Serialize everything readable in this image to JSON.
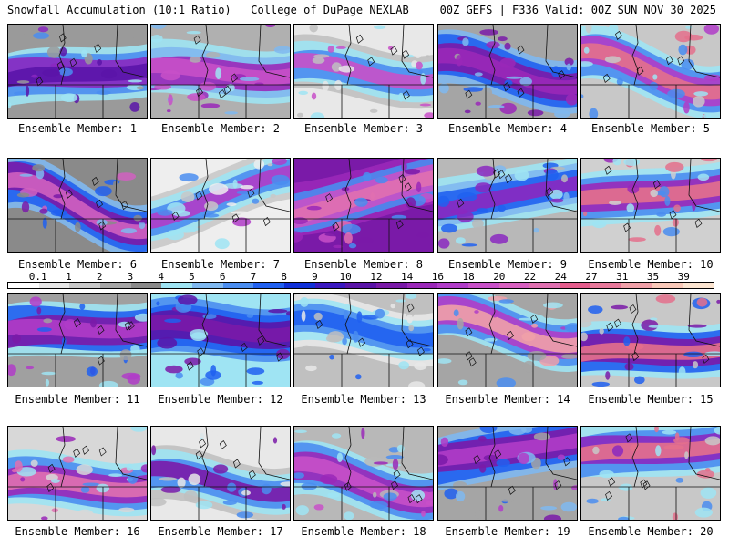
{
  "header": {
    "title": "Snowfall Accumulation (10:1 Ratio) | College of DuPage NEXLAB",
    "run_info": "00Z GEFS | F336 Valid: 00Z SUN NOV 30 2025"
  },
  "members": [
    {
      "label": "Ensemble Member: 1"
    },
    {
      "label": "Ensemble Member: 2"
    },
    {
      "label": "Ensemble Member: 3"
    },
    {
      "label": "Ensemble Member: 4"
    },
    {
      "label": "Ensemble Member: 5"
    },
    {
      "label": "Ensemble Member: 6"
    },
    {
      "label": "Ensemble Member: 7"
    },
    {
      "label": "Ensemble Member: 8"
    },
    {
      "label": "Ensemble Member: 9"
    },
    {
      "label": "Ensemble Member: 10"
    },
    {
      "label": "Ensemble Member: 11"
    },
    {
      "label": "Ensemble Member: 12"
    },
    {
      "label": "Ensemble Member: 13"
    },
    {
      "label": "Ensemble Member: 14"
    },
    {
      "label": "Ensemble Member: 15"
    },
    {
      "label": "Ensemble Member: 16"
    },
    {
      "label": "Ensemble Member: 17"
    },
    {
      "label": "Ensemble Member: 18"
    },
    {
      "label": "Ensemble Member: 19"
    },
    {
      "label": "Ensemble Member: 20"
    }
  ],
  "colorbar": {
    "labels": [
      "0.1",
      "1",
      "2",
      "3",
      "4",
      "5",
      "6",
      "7",
      "8",
      "9",
      "10",
      "12",
      "14",
      "16",
      "18",
      "20",
      "22",
      "24",
      "27",
      "31",
      "35",
      "39"
    ],
    "colors": [
      "#ffffff",
      "#e6e6e6",
      "#c8c8c8",
      "#a5a5a5",
      "#8a8a8a",
      "#9fe4f3",
      "#7fb8f0",
      "#4a8df0",
      "#2060f0",
      "#1030d8",
      "#3a18c0",
      "#5a14a8",
      "#7a1aa8",
      "#9a28b8",
      "#b03cc8",
      "#c850c8",
      "#d860c0",
      "#e070b0",
      "#e45c8c",
      "#e8789a",
      "#f0a0a8",
      "#f8c8b8",
      "#fbe4d0"
    ]
  },
  "chart_data": {
    "type": "heatmap",
    "title": "Snowfall Accumulation (10:1 Ratio)",
    "subtitle": "00Z GEFS | F336 Valid: 00Z SUN NOV 30 2025",
    "legend_levels": [
      0.1,
      1,
      2,
      3,
      4,
      5,
      6,
      7,
      8,
      9,
      10,
      12,
      14,
      16,
      18,
      20,
      22,
      24,
      27,
      31,
      35,
      39
    ],
    "panel_count": 20
  }
}
